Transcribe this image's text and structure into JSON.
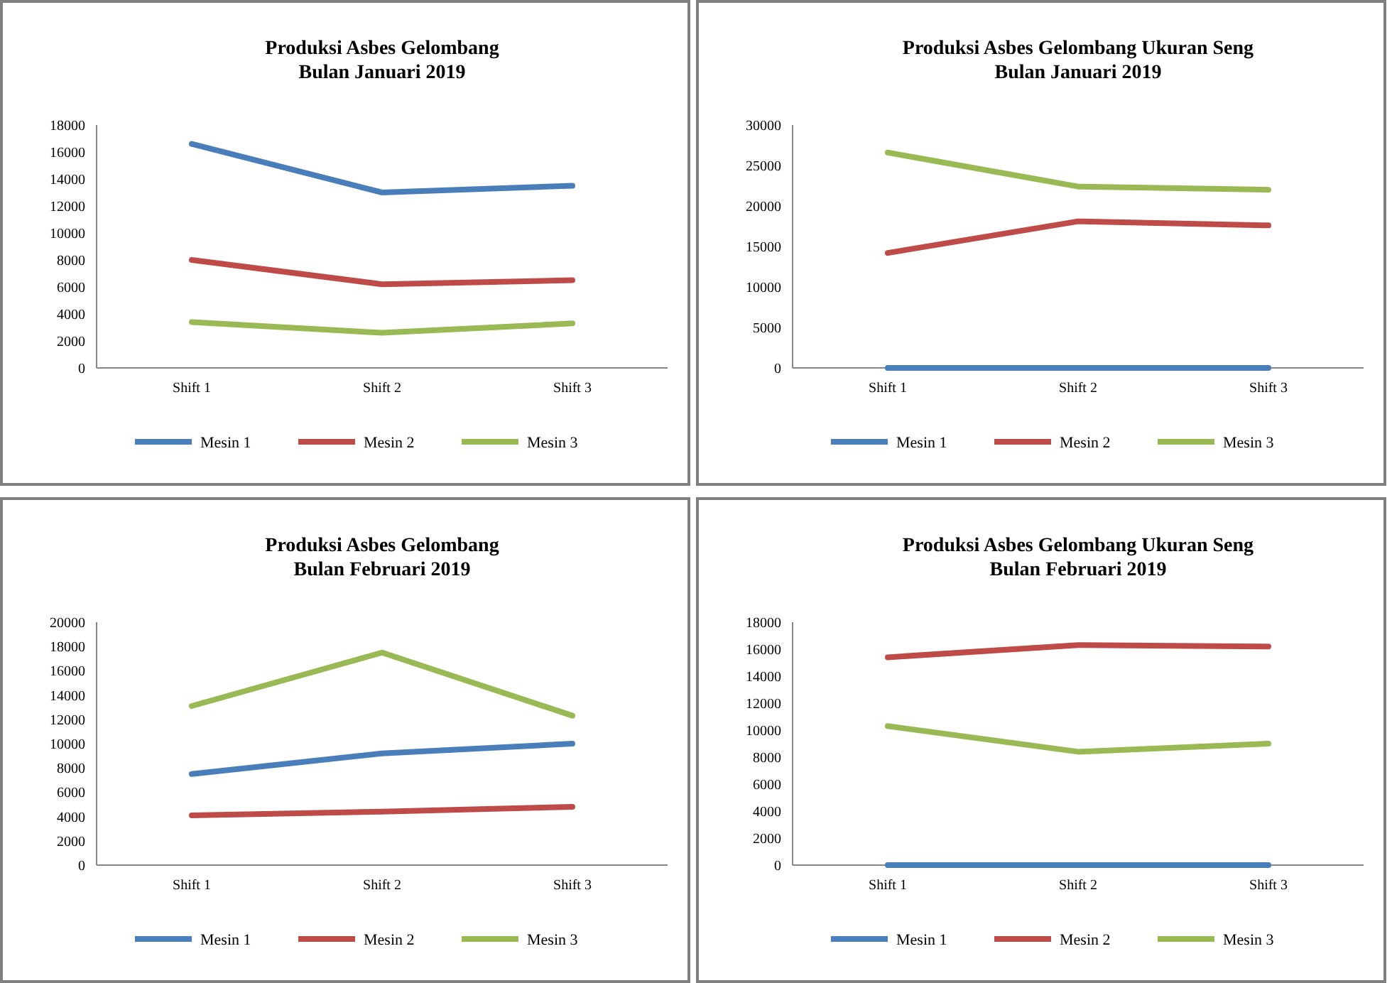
{
  "chart_data": [
    {
      "type": "line",
      "title": "Produksi Asbes Gelombang\nBulan Januari 2019",
      "categories": [
        "Shift 1",
        "Shift 2",
        "Shift 3"
      ],
      "ylim": [
        0,
        18000
      ],
      "yticks": [
        0,
        2000,
        4000,
        6000,
        8000,
        10000,
        12000,
        14000,
        16000,
        18000
      ],
      "legend": "bottom",
      "grid": false,
      "marker": "none",
      "series": [
        {
          "name": "Mesin 1",
          "color": "#4a7ebb",
          "values": [
            16600,
            13000,
            13500
          ]
        },
        {
          "name": "Mesin 2",
          "color": "#be4b48",
          "values": [
            8000,
            6200,
            6500
          ]
        },
        {
          "name": "Mesin 3",
          "color": "#98b954",
          "values": [
            3400,
            2600,
            3300
          ]
        }
      ]
    },
    {
      "type": "line",
      "title": "Produksi Asbes Gelombang Ukuran Seng\nBulan Januari 2019",
      "categories": [
        "Shift 1",
        "Shift 2",
        "Shift 3"
      ],
      "ylim": [
        0,
        30000
      ],
      "yticks": [
        0,
        5000,
        10000,
        15000,
        20000,
        25000,
        30000
      ],
      "legend": "bottom",
      "grid": false,
      "marker": "none",
      "series": [
        {
          "name": "Mesin 1",
          "color": "#4a7ebb",
          "values": [
            0,
            0,
            0
          ]
        },
        {
          "name": "Mesin 2",
          "color": "#be4b48",
          "values": [
            14200,
            18100,
            17600
          ]
        },
        {
          "name": "Mesin 3",
          "color": "#98b954",
          "values": [
            26600,
            22400,
            22000
          ]
        }
      ]
    },
    {
      "type": "line",
      "title": "Produksi Asbes Gelombang\nBulan Februari 2019",
      "categories": [
        "Shift 1",
        "Shift 2",
        "Shift 3"
      ],
      "ylim": [
        0,
        20000
      ],
      "yticks": [
        0,
        2000,
        4000,
        6000,
        8000,
        10000,
        12000,
        14000,
        16000,
        18000,
        20000
      ],
      "legend": "bottom",
      "grid": false,
      "marker": "none",
      "series": [
        {
          "name": "Mesin 1",
          "color": "#4a7ebb",
          "values": [
            7500,
            9200,
            10000
          ]
        },
        {
          "name": "Mesin 2",
          "color": "#be4b48",
          "values": [
            4100,
            4400,
            4800
          ]
        },
        {
          "name": "Mesin 3",
          "color": "#98b954",
          "values": [
            13100,
            17500,
            12300
          ]
        }
      ]
    },
    {
      "type": "line",
      "title": "Produksi Asbes Gelombang Ukuran Seng\nBulan Februari 2019",
      "categories": [
        "Shift 1",
        "Shift 2",
        "Shift 3"
      ],
      "ylim": [
        0,
        18000
      ],
      "yticks": [
        0,
        2000,
        4000,
        6000,
        8000,
        10000,
        12000,
        14000,
        16000,
        18000
      ],
      "legend": "bottom",
      "grid": false,
      "marker": "none",
      "series": [
        {
          "name": "Mesin 1",
          "color": "#4a7ebb",
          "values": [
            0,
            0,
            0
          ]
        },
        {
          "name": "Mesin 2",
          "color": "#be4b48",
          "values": [
            15400,
            16300,
            16200
          ]
        },
        {
          "name": "Mesin 3",
          "color": "#98b954",
          "values": [
            10300,
            8400,
            9000
          ]
        }
      ]
    }
  ]
}
